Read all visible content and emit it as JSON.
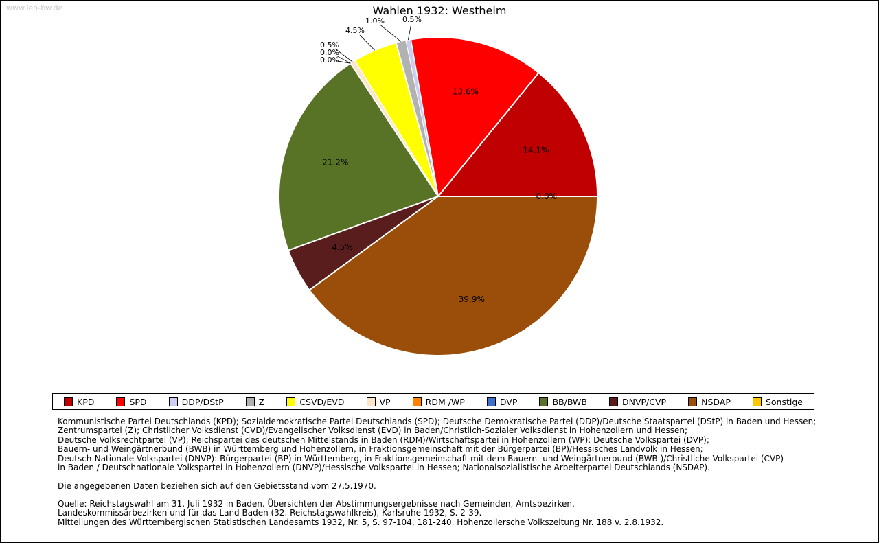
{
  "watermark": "www.leo-bw.de",
  "chart_data": {
    "type": "pie",
    "title": "Wahlen 1932: Westheim",
    "direction": "counterclockwise",
    "start_angle_deg_from_east": 0,
    "legend_position": "bottom",
    "slices": [
      {
        "label": "KPD",
        "value": 14.1,
        "display": "14.1%",
        "color": "#c00000",
        "label_placement": "inside"
      },
      {
        "label": "SPD",
        "value": 13.6,
        "display": "13.6%",
        "color": "#ff0000",
        "label_placement": "inside"
      },
      {
        "label": "DDP/DStP",
        "value": 0.5,
        "display": "0.5%",
        "color": "#cdcdf0",
        "label_placement": "outside"
      },
      {
        "label": "Z",
        "value": 1.0,
        "display": "1.0%",
        "color": "#b2b2b2",
        "label_placement": "outside"
      },
      {
        "label": "CSVD/EVD",
        "value": 4.5,
        "display": "4.5%",
        "color": "#ffff00",
        "label_placement": "outside"
      },
      {
        "label": "VP",
        "value": 0.5,
        "display": "0.5%",
        "color": "#fce5c8",
        "label_placement": "outside"
      },
      {
        "label": "RDM /WP",
        "value": 0.0,
        "display": "0.0%",
        "color": "#ff8200",
        "label_placement": "outside"
      },
      {
        "label": "DVP",
        "value": 0.0,
        "display": "0.0%",
        "color": "#3d6fcc",
        "label_placement": "outside"
      },
      {
        "label": "BB/BWB",
        "value": 21.2,
        "display": "21.2%",
        "color": "#587226",
        "label_placement": "inside"
      },
      {
        "label": "DNVP/CVP",
        "value": 4.5,
        "display": "4.5%",
        "color": "#5a1d1d",
        "label_placement": "inside"
      },
      {
        "label": "NSDAP",
        "value": 39.9,
        "display": "39.9%",
        "color": "#9b4e0a",
        "label_placement": "inside"
      },
      {
        "label": "Sonstige",
        "value": 0.0,
        "display": "0.0%",
        "color": "#fdc702",
        "label_placement": "inside"
      }
    ]
  },
  "notes": {
    "party_lines": [
      "Kommunistische Partei Deutschlands (KPD); Sozialdemokratische Partei Deutschlands (SPD); Deutsche Demokratische Partei (DDP)/Deutsche Staatspartei (DStP) in Baden und Hessen;",
      "Zentrumspartei (Z); Christlicher Volksdienst (CVD)/Evangelischer Volksdienst (EVD) in Baden/Christlich-Sozialer Volksdienst in Hohenzollern und Hessen;",
      "Deutsche Volksrechtpartei (VP); Reichspartei des deutschen Mittelstands in Baden (RDM)/Wirtschaftspartei in Hohenzollern (WP); Deutsche Volkspartei (DVP);",
      "Bauern- und Weingärtnerbund (BWB) in Württemberg und Hohenzollern, in Fraktionsgemeinschaft mit der Bürgerpartei (BP)/Hessisches Landvolk in Hessen;",
      "Deutsch-Nationale Volkspartei (DNVP): Bürgerpartei (BP) in Württemberg, in Fraktionsgemeinschaft mit dem Bauern- und Weingärtnerbund (BWB )/Christliche Volkspartei (CVP)",
      "in Baden / Deutschnationale Volkspartei in Hohenzollern (DNVP)/Hessische Volkspartei in Hessen; Nationalsozialistische Arbeiterpartei Deutschlands (NSDAP)."
    ],
    "gebietsstand": "Die angegebenen Daten beziehen sich auf den Gebietsstand vom 27.5.1970.",
    "quelle_lines": [
      "Quelle: Reichstagswahl am 31. Juli 1932 in Baden. Übersichten der Abstimmungsergebnisse nach Gemeinden, Amtsbezirken,",
      "Landeskommissärbezirken und für das Land Baden (32. Reichstagswahlkreis), Karlsruhe 1932, S. 2-39.",
      "Mitteilungen des Württembergischen Statistischen Landesamts 1932, Nr. 5, S. 97-104, 181-240. Hohenzollersche Volkszeitung Nr. 188 v. 2.8.1932."
    ]
  }
}
